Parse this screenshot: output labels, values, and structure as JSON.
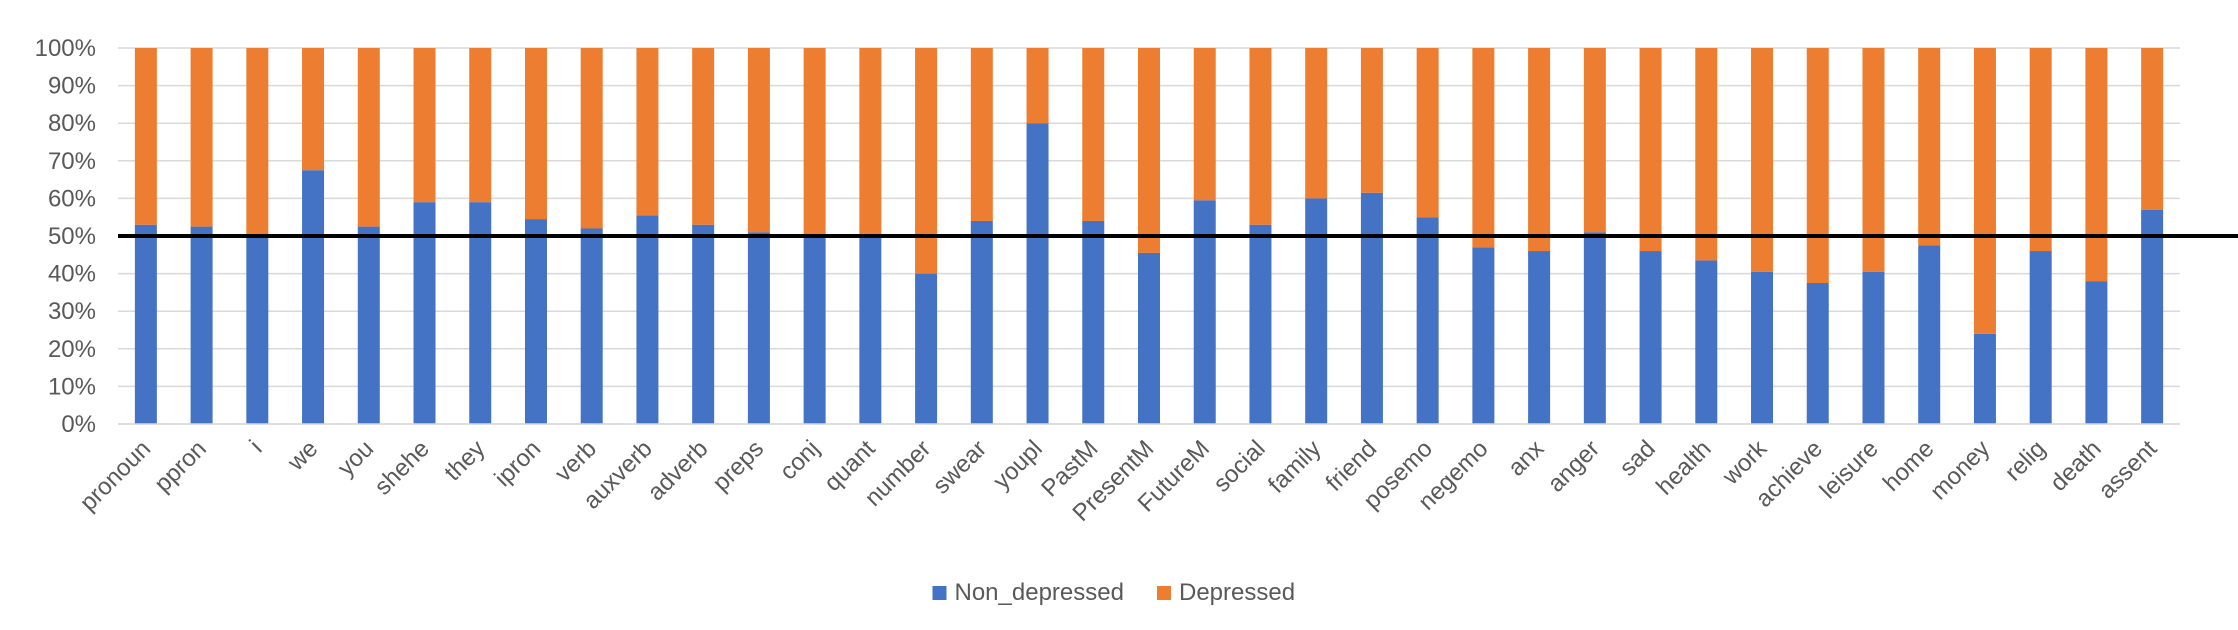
{
  "chart_data": {
    "type": "bar",
    "stacked": true,
    "percent": true,
    "title": "",
    "xlabel": "",
    "ylabel": "",
    "ylim": [
      0,
      100
    ],
    "yticks": [
      "0%",
      "10%",
      "20%",
      "30%",
      "40%",
      "50%",
      "60%",
      "70%",
      "80%",
      "90%",
      "100%"
    ],
    "grid": true,
    "reference_line": 50,
    "legend_position": "bottom",
    "categories": [
      "pronoun",
      "ppron",
      "i",
      "we",
      "you",
      "shehe",
      "they",
      "ipron",
      "verb",
      "auxverb",
      "adverb",
      "preps",
      "conj",
      "quant",
      "number",
      "swear",
      "youpl",
      "PastM",
      "PresentM",
      "FutureM",
      "social",
      "family",
      "friend",
      "posemo",
      "negemo",
      "anx",
      "anger",
      "sad",
      "health",
      "work",
      "achieve",
      "leisure",
      "home",
      "money",
      "relig",
      "death",
      "assent"
    ],
    "series": [
      {
        "name": "Non_depressed",
        "color": "#4472C4",
        "values": [
          53,
          52.5,
          50,
          67.5,
          52.5,
          59,
          59,
          54.5,
          52,
          55.5,
          53,
          51,
          50,
          50,
          40,
          54,
          80,
          54,
          45.5,
          59.5,
          53,
          60,
          61.5,
          55,
          47,
          46,
          51,
          46,
          43.5,
          40.5,
          37.5,
          40.5,
          47.5,
          24,
          46,
          38,
          57
        ]
      },
      {
        "name": "Depressed",
        "color": "#ED7D31",
        "values": [
          47,
          47.5,
          50,
          32.5,
          47.5,
          41,
          41,
          45.5,
          48,
          44.5,
          47,
          49,
          50,
          50,
          60,
          46,
          20,
          46,
          54.5,
          40.5,
          47,
          40,
          38.5,
          45,
          53,
          54,
          49,
          54,
          56.5,
          59.5,
          62.5,
          59.5,
          52.5,
          76,
          54,
          62,
          43
        ]
      }
    ]
  }
}
